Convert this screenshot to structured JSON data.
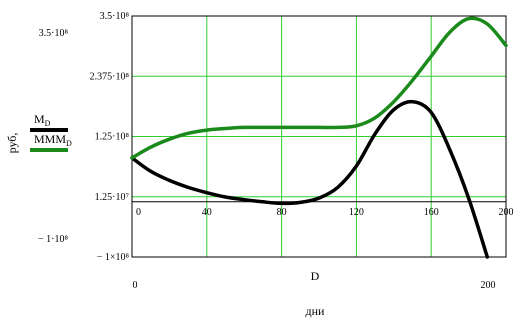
{
  "chart_data": {
    "type": "line",
    "x": [
      0,
      10,
      20,
      30,
      40,
      50,
      60,
      70,
      80,
      90,
      100,
      110,
      120,
      130,
      140,
      150,
      160,
      170,
      180,
      190,
      200
    ],
    "series": [
      {
        "name": "M",
        "name_sub": "D",
        "color": "#000000",
        "values": [
          85000000,
          60000000,
          43000000,
          30000000,
          20000000,
          12000000,
          7000000,
          3000000,
          0,
          2000000,
          10000000,
          30000000,
          70000000,
          130000000,
          175000000,
          190000000,
          170000000,
          100000000,
          10000000,
          -100000000,
          null
        ]
      },
      {
        "name": "MMM",
        "name_sub": "D",
        "color": "#1a8a1a",
        "values": [
          85000000,
          105000000,
          120000000,
          131000000,
          137000000,
          140000000,
          142000000,
          142000000,
          142000000,
          142000000,
          142000000,
          142000000,
          145000000,
          160000000,
          190000000,
          230000000,
          275000000,
          320000000,
          345000000,
          335000000,
          295000000
        ]
      }
    ],
    "xlim": [
      0,
      200
    ],
    "ylim": [
      -100000000,
      350000000
    ],
    "xticks": [
      0,
      40,
      80,
      120,
      160,
      200
    ],
    "xtick_labels": [
      "0",
      "40",
      "80",
      "120",
      "160",
      "200"
    ],
    "ytick_labels_inside": [
      {
        "value": 350000000,
        "label": "3.5·10⁸"
      },
      {
        "value": 237500000,
        "label": "2.375·10⁸"
      },
      {
        "value": 125000000,
        "label": "1.25·10⁸"
      },
      {
        "value": 12500000,
        "label": "1.25·10⁷"
      },
      {
        "value": -100000000,
        "label": "− 1×10⁸"
      }
    ],
    "ytick_labels_outside": [
      {
        "value": 350000000,
        "label": "3.5·10⁸"
      },
      {
        "value": -100000000,
        "label": "− 1·10⁸"
      }
    ],
    "x_range_labels": [
      "0",
      "200"
    ],
    "x_variable": "D",
    "xlabel": "дни",
    "ylabel": "руб,",
    "grid": true
  }
}
